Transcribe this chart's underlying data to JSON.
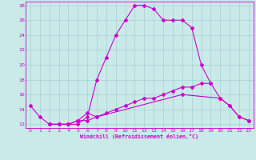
{
  "xlabel": "Windchill (Refroidissement éolien,°C)",
  "bg_color": "#caeaea",
  "grid_color": "#aad4d4",
  "line_color": "#cc00cc",
  "xlim": [
    -0.5,
    23.5
  ],
  "ylim": [
    11.5,
    28.5
  ],
  "xticks": [
    0,
    1,
    2,
    3,
    4,
    5,
    6,
    7,
    8,
    9,
    10,
    11,
    12,
    13,
    14,
    15,
    16,
    17,
    18,
    19,
    20,
    21,
    22,
    23
  ],
  "yticks": [
    12,
    14,
    16,
    18,
    20,
    22,
    24,
    26,
    28
  ],
  "line1_x": [
    0,
    1,
    2,
    3,
    4,
    5,
    6,
    7,
    8,
    9,
    10,
    11,
    12,
    13,
    14,
    15,
    16,
    17,
    18,
    19
  ],
  "line1_y": [
    14.5,
    13.0,
    12.0,
    12.0,
    12.0,
    12.0,
    13.0,
    18.0,
    21.0,
    24.0,
    26.0,
    28.0,
    28.0,
    27.5,
    26.0,
    26.0,
    26.0,
    25.0,
    20.0,
    17.5
  ],
  "line2_x": [
    2,
    3,
    4,
    5,
    6,
    7,
    16,
    20,
    21,
    22,
    23
  ],
  "line2_y": [
    12.0,
    12.0,
    12.0,
    12.5,
    13.5,
    13.0,
    16.0,
    15.5,
    14.5,
    13.0,
    12.5
  ],
  "line3_x": [
    2,
    3,
    4,
    5,
    6,
    7,
    8,
    9,
    10,
    11,
    12,
    13,
    14,
    15,
    16,
    17,
    18,
    19,
    20,
    21,
    22,
    23
  ],
  "line3_y": [
    12.0,
    12.0,
    12.0,
    12.5,
    12.5,
    13.0,
    13.5,
    14.0,
    14.5,
    15.0,
    15.5,
    15.5,
    16.0,
    16.5,
    17.0,
    17.0,
    17.5,
    17.5,
    15.5,
    14.5,
    13.0,
    12.5
  ]
}
